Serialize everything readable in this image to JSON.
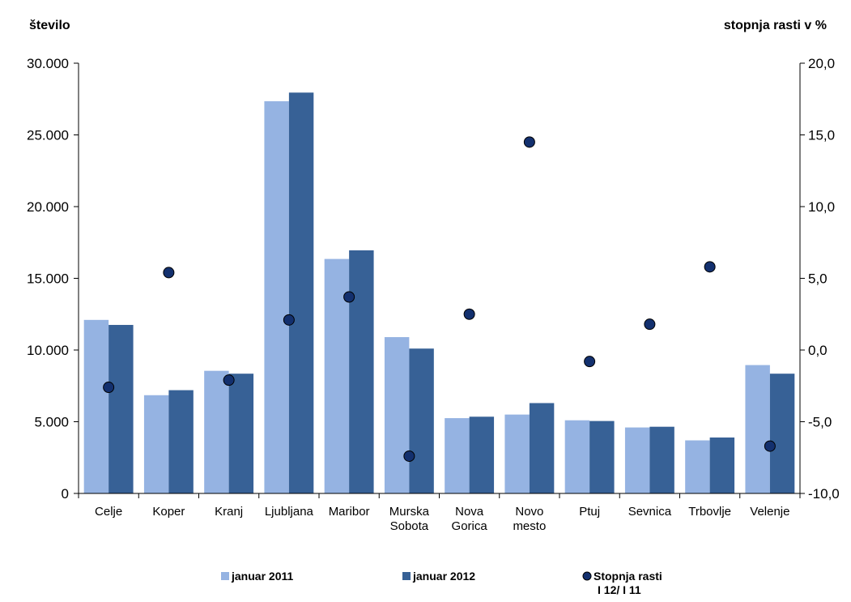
{
  "chart_data": {
    "type": "bar",
    "left_axis_title": "število",
    "right_axis_title": "stopnja rasti v %",
    "categories": [
      [
        "Celje"
      ],
      [
        "Koper"
      ],
      [
        "Kranj"
      ],
      [
        "Ljubljana"
      ],
      [
        "Maribor"
      ],
      [
        "Murska",
        "Sobota"
      ],
      [
        "Nova",
        "Gorica"
      ],
      [
        "Novo",
        "mesto"
      ],
      [
        "Ptuj"
      ],
      [
        "Sevnica"
      ],
      [
        "Trbovlje"
      ],
      [
        "Velenje"
      ]
    ],
    "ylim_left": [
      0,
      30000
    ],
    "ylim_right": [
      -10,
      20
    ],
    "left_ticks": [
      "0",
      "5.000",
      "10.000",
      "15.000",
      "20.000",
      "25.000",
      "30.000"
    ],
    "right_ticks": [
      "-10,0",
      "-5,0",
      "0,0",
      "5,0",
      "10,0",
      "15,0",
      "20,0"
    ],
    "grid": false,
    "series": [
      {
        "name": "januar 2011",
        "type": "bar",
        "axis": "left",
        "color": "#95b3e2",
        "values": [
          12100,
          6850,
          8550,
          27350,
          16350,
          10900,
          5250,
          5500,
          5100,
          4600,
          3700,
          8950
        ]
      },
      {
        "name": "januar 2012",
        "type": "bar",
        "axis": "left",
        "color": "#376196",
        "values": [
          11750,
          7200,
          8350,
          27950,
          16950,
          10100,
          5350,
          6300,
          5050,
          4650,
          3900,
          8350
        ]
      },
      {
        "name": [
          "Stopnja rasti",
          "I 12/ I 11"
        ],
        "type": "scatter",
        "axis": "right",
        "color": "#13306e",
        "values": [
          -2.6,
          5.4,
          -2.1,
          2.1,
          3.7,
          -7.4,
          2.5,
          14.5,
          -0.8,
          1.8,
          5.8,
          -6.7
        ]
      }
    ],
    "legend_position": "bottom"
  }
}
